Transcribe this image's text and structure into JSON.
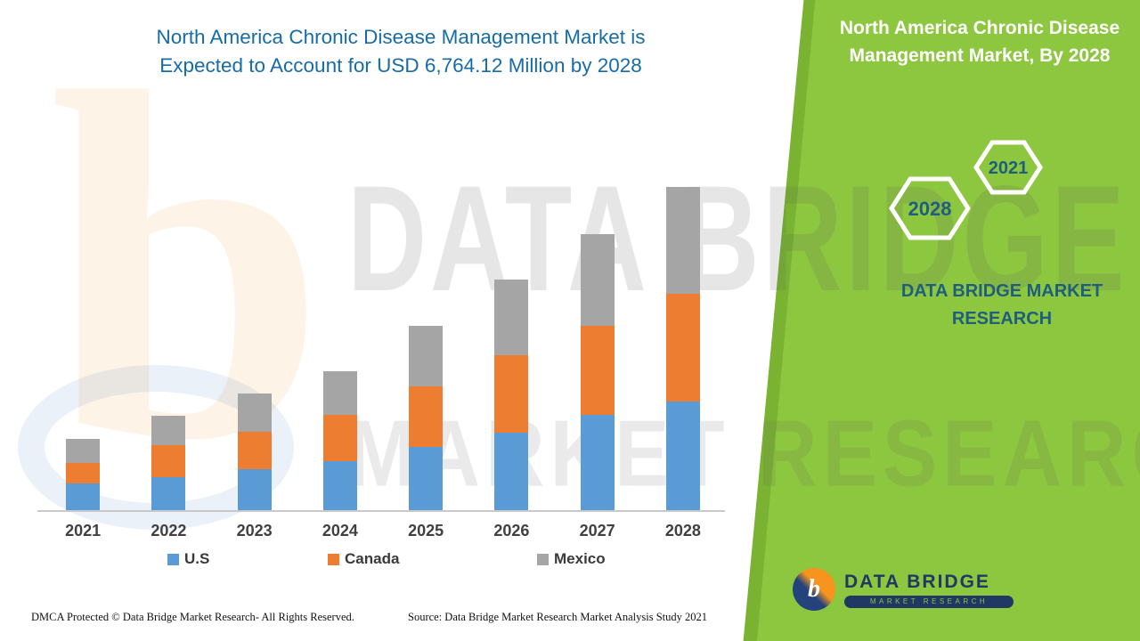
{
  "page": {
    "title_line1": "North America Chronic Disease Management Market is",
    "title_line2": "Expected to Account for USD 6,764.12 Million by 2028"
  },
  "side_panel": {
    "title_line1": "North America Chronic Disease",
    "title_line2": "Management Market, By 2028",
    "hexagons": [
      {
        "label": "2028"
      },
      {
        "label": "2021"
      }
    ],
    "brand_line1": "DATA BRIDGE MARKET",
    "brand_line2": "RESEARCH",
    "accent_color": "#8dc63f"
  },
  "logo": {
    "icon_letter": "b",
    "name": "DATA BRIDGE",
    "subtitle": "MARKET RESEARCH"
  },
  "watermark": {
    "logo_letter": "b",
    "line1": "DATA BRIDGE",
    "line2": "MARKET RESEARCH"
  },
  "footer": {
    "left": "DMCA Protected © Data Bridge Market Research- All Rights Reserved.",
    "source": "Source: Data Bridge Market Research Market Analysis Study 2021"
  },
  "chart_data": {
    "type": "bar",
    "stacked": true,
    "title": "North America Chronic Disease Management Market is Expected to Account for USD 6,764.12 Million by 2028",
    "unit": "USD Million",
    "categories": [
      "2021",
      "2022",
      "2023",
      "2024",
      "2025",
      "2026",
      "2027",
      "2028"
    ],
    "series": [
      {
        "name": "U.S",
        "color": "#5b9bd5",
        "values": [
          560,
          690,
          857,
          1025,
          1323,
          1621,
          1993,
          2270
        ]
      },
      {
        "name": "Canada",
        "color": "#ed7d31",
        "values": [
          428,
          671,
          782,
          969,
          1267,
          1621,
          1863,
          2254.12
        ]
      },
      {
        "name": "Mexico",
        "color": "#a5a5a5",
        "values": [
          503,
          615,
          801,
          913,
          1267,
          1583,
          1919,
          2240
        ]
      }
    ],
    "totals": [
      1491,
      1976,
      2440,
      2907,
      3857,
      4825,
      5775,
      6764.12
    ],
    "total_2028": 6764.12,
    "legend_position": "bottom",
    "gridlines": false,
    "y_axis_visible": false
  }
}
